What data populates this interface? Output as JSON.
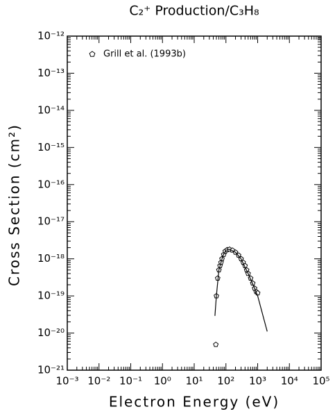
{
  "chart_data": {
    "type": "scatter",
    "title": "C₂⁺ Production/C₃H₈",
    "xlabel": "Electron Energy (eV)",
    "ylabel": "Cross Section (cm²)",
    "xscale": "log",
    "yscale": "log",
    "xlim": [
      0.001,
      100000
    ],
    "ylim": [
      1e-21,
      1e-12
    ],
    "xticks": [
      {
        "value": 0.001,
        "label": "10⁻³"
      },
      {
        "value": 0.01,
        "label": "10⁻²"
      },
      {
        "value": 0.1,
        "label": "10⁻¹"
      },
      {
        "value": 1,
        "label": "10⁰"
      },
      {
        "value": 10,
        "label": "10¹"
      },
      {
        "value": 100,
        "label": "10²"
      },
      {
        "value": 1000,
        "label": "10³"
      },
      {
        "value": 10000,
        "label": "10⁴"
      },
      {
        "value": 100000,
        "label": "10⁵"
      }
    ],
    "yticks": [
      {
        "value": 1e-21,
        "label": "10⁻²¹"
      },
      {
        "value": 1e-20,
        "label": "10⁻²⁰"
      },
      {
        "value": 1e-19,
        "label": "10⁻¹⁹"
      },
      {
        "value": 1e-18,
        "label": "10⁻¹⁸"
      },
      {
        "value": 1e-17,
        "label": "10⁻¹⁷"
      },
      {
        "value": 1e-16,
        "label": "10⁻¹⁶"
      },
      {
        "value": 1e-15,
        "label": "10⁻¹⁵"
      },
      {
        "value": 1e-14,
        "label": "10⁻¹⁴"
      },
      {
        "value": 1e-13,
        "label": "10⁻¹³"
      },
      {
        "value": 1e-12,
        "label": "10⁻¹²"
      }
    ],
    "legend": "upper left",
    "series": [
      {
        "name": "Grill et al. (1993b)",
        "type": "scatter",
        "marker": "pentagon",
        "color": "#000000",
        "x": [
          48,
          50,
          55,
          60,
          65,
          70,
          75,
          85,
          95,
          110,
          130,
          160,
          200,
          250,
          300,
          350,
          400,
          450,
          500,
          600,
          700,
          800,
          900,
          1000
        ],
        "values": [
          4.9e-21,
          1e-19,
          3e-19,
          5e-19,
          6.5e-19,
          8e-19,
          1e-18,
          1.3e-18,
          1.6e-18,
          1.75e-18,
          1.8e-18,
          1.7e-18,
          1.5e-18,
          1.25e-18,
          1e-18,
          8e-19,
          6.5e-19,
          5e-19,
          4e-19,
          3e-19,
          2.2e-19,
          1.6e-19,
          1.3e-19,
          1.2e-19
        ]
      },
      {
        "type": "line",
        "color": "#000000",
        "x": [
          45,
          50,
          60,
          80,
          100,
          130,
          200,
          300,
          500,
          800,
          1000,
          2000
        ],
        "values": [
          2.9e-20,
          1e-19,
          5e-19,
          1.2e-18,
          1.7e-18,
          1.8e-18,
          1.5e-18,
          1e-18,
          4e-19,
          1.6e-19,
          1e-19,
          1.1e-20
        ]
      }
    ]
  }
}
